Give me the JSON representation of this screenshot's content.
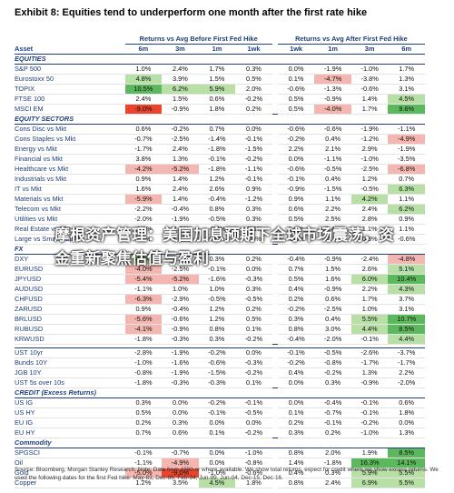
{
  "header": {
    "title": "Exhibit 8: Equities tend to underperform one month after the first rate hike"
  },
  "table": {
    "asset_header": "Asset",
    "group_headers": [
      "Returns vs Avg Before First Fed Hike",
      "Returns vs Avg After First Fed Hike"
    ],
    "columns": [
      "6m",
      "3m",
      "1m",
      "1wk",
      "1wk",
      "1m",
      "3m",
      "6m"
    ],
    "sections": [
      {
        "title": "EQUITIES",
        "rows": [
          {
            "asset": "S&P 500",
            "values": [
              "1.0%",
              "2.4%",
              "1.7%",
              "0.3%",
              "0.0%",
              "-1.9%",
              "-1.0%",
              "1.7%"
            ]
          },
          {
            "asset": "Eurostoxx 50",
            "values": [
              "4.8%",
              "3.9%",
              "1.5%",
              "0.5%",
              "0.1%",
              "-4.7%",
              "-3.8%",
              "1.3%"
            ]
          },
          {
            "asset": "TOPIX",
            "values": [
              "10.5%",
              "6.2%",
              "5.9%",
              "2.0%",
              "-0.6%",
              "-1.3%",
              "-0.6%",
              "3.1%"
            ]
          },
          {
            "asset": "FTSE 100",
            "values": [
              "2.4%",
              "1.5%",
              "0.6%",
              "-0.2%",
              "0.5%",
              "-0.9%",
              "1.4%",
              "4.5%"
            ]
          },
          {
            "asset": "MSCI EM",
            "values": [
              "-9.0%",
              "-0.9%",
              "1.8%",
              "0.2%",
              "0.5%",
              "-4.0%",
              "1.7%",
              "9.6%"
            ]
          }
        ]
      },
      {
        "title": "EQUITY SECTORS",
        "rows": [
          {
            "asset": "Cons Disc vs Mkt",
            "values": [
              "0.6%",
              "-0.2%",
              "0.7%",
              "0.0%",
              "-0.6%",
              "-0.6%",
              "-1.9%",
              "-1.1%"
            ]
          },
          {
            "asset": "Cons Staples vs Mkt",
            "values": [
              "-0.7%",
              "-2.5%",
              "-1.4%",
              "-0.1%",
              "-0.2%",
              "0.4%",
              "-1.2%",
              "-4.9%"
            ]
          },
          {
            "asset": "Energy vs Mkt",
            "values": [
              "-1.7%",
              "2.4%",
              "-1.8%",
              "-1.5%",
              "2.2%",
              "2.1%",
              "2.9%",
              "-1.9%"
            ]
          },
          {
            "asset": "Financial vs Mkt",
            "values": [
              "3.8%",
              "1.3%",
              "-0.1%",
              "-0.2%",
              "0.0%",
              "-1.1%",
              "-1.0%",
              "-3.5%"
            ]
          },
          {
            "asset": "Healthcare vs Mkt",
            "values": [
              "-4.2%",
              "-5.2%",
              "-1.8%",
              "-1.1%",
              "-0.6%",
              "-0.5%",
              "-2.5%",
              "-6.8%"
            ]
          },
          {
            "asset": "Industrials vs Mkt",
            "values": [
              "0.9%",
              "1.4%",
              "1.2%",
              "-0.1%",
              "-0.1%",
              "0.4%",
              "1.2%",
              "0.7%"
            ]
          },
          {
            "asset": "IT vs Mkt",
            "values": [
              "1.6%",
              "2.4%",
              "2.6%",
              "0.9%",
              "-0.9%",
              "-1.5%",
              "-0.5%",
              "6.3%"
            ]
          },
          {
            "asset": "Materials vs Mkt",
            "values": [
              "-5.9%",
              "1.4%",
              "-0.4%",
              "-1.2%",
              "0.9%",
              "1.1%",
              "4.2%",
              "1.1%"
            ]
          },
          {
            "asset": "Telecom vs Mkt",
            "values": [
              "-2.2%",
              "-0.4%",
              "0.8%",
              "0.3%",
              "0.6%",
              "2.2%",
              "2.4%",
              "6.2%"
            ]
          },
          {
            "asset": "Utilities vs Mkt",
            "values": [
              "-2.0%",
              "-1.9%",
              "-0.5%",
              "0.3%",
              "0.5%",
              "2.5%",
              "2.8%",
              "0.9%"
            ]
          },
          {
            "asset": "Real Estate vs Mkt",
            "values": [
              "-1.1%",
              "-1.0%",
              "-0.4%",
              "-0.6%",
              "1.2%",
              "1.4%",
              "1.1%",
              "1.1%"
            ]
          },
          {
            "asset": "Large vs Small Cap",
            "values": [
              "1.7%",
              "1.9%",
              "0.9%",
              "0.5%",
              "-0.3%",
              "-0.1%",
              "0.3%",
              "-0.6%"
            ]
          }
        ]
      },
      {
        "title": "FX",
        "rows": [
          {
            "asset": "DXY",
            "values": [
              "4.7%",
              "2.9%",
              "0.3%",
              "0.2%",
              "-0.4%",
              "-0.9%",
              "-2.4%",
              "-4.8%"
            ]
          },
          {
            "asset": "EURUSD",
            "values": [
              "-4.0%",
              "-2.5%",
              "-0.1%",
              "0.0%",
              "0.7%",
              "1.5%",
              "2.6%",
              "5.1%"
            ]
          },
          {
            "asset": "JPYUSD",
            "values": [
              "-5.4%",
              "-5.2%",
              "-1.6%",
              "-0.3%",
              "0.5%",
              "1.6%",
              "6.0%",
              "10.4%"
            ]
          },
          {
            "asset": "AUDUSD",
            "values": [
              "-1.1%",
              "1.0%",
              "1.0%",
              "0.3%",
              "0.4%",
              "-0.9%",
              "2.2%",
              "4.3%"
            ]
          },
          {
            "asset": "CHFUSD",
            "values": [
              "-6.3%",
              "-2.9%",
              "-0.5%",
              "-0.5%",
              "0.2%",
              "0.6%",
              "1.7%",
              "3.7%"
            ]
          },
          {
            "asset": "ZARUSD",
            "values": [
              "0.9%",
              "-0.4%",
              "1.2%",
              "0.2%",
              "-0.2%",
              "-2.5%",
              "1.0%",
              "3.1%"
            ]
          },
          {
            "asset": "BRLUSD",
            "values": [
              "-5.6%",
              "-0.6%",
              "1.2%",
              "0.5%",
              "0.3%",
              "0.4%",
              "5.5%",
              "10.7%"
            ]
          },
          {
            "asset": "RUBUSD",
            "values": [
              "-4.1%",
              "-0.9%",
              "0.8%",
              "0.1%",
              "0.8%",
              "3.0%",
              "4.4%",
              "8.5%"
            ]
          },
          {
            "asset": "KRWUSD",
            "values": [
              "-1.8%",
              "-0.3%",
              "0.3%",
              "-0.2%",
              "-0.4%",
              "-2.0%",
              "-0.1%",
              "4.4%"
            ]
          }
        ]
      },
      {
        "rows": [
          {
            "asset": "UST 10yr",
            "values": [
              "-2.8%",
              "-1.9%",
              "-0.2%",
              "0.0%",
              "-0.1%",
              "-0.5%",
              "-2.6%",
              "-3.7%"
            ]
          },
          {
            "asset": "Bunds 10Y",
            "values": [
              "-1.0%",
              "-1.6%",
              "-0.6%",
              "-0.3%",
              "-0.2%",
              "-0.8%",
              "-1.7%",
              "-1.7%"
            ]
          },
          {
            "asset": "JGB 10Y",
            "values": [
              "-0.8%",
              "-1.9%",
              "-1.5%",
              "-0.2%",
              "0.4%",
              "-0.2%",
              "1.3%",
              "2.2%"
            ]
          },
          {
            "asset": "UST 5s over 10s",
            "values": [
              "-1.8%",
              "-0.3%",
              "-0.3%",
              "0.1%",
              "0.0%",
              "0.3%",
              "-0.9%",
              "-2.0%"
            ]
          }
        ]
      },
      {
        "title": "CREDIT (Excess Returns)",
        "rows": [
          {
            "asset": "US IG",
            "values": [
              "0.3%",
              "0.0%",
              "-0.2%",
              "-0.1%",
              "0.0%",
              "-0.4%",
              "-0.1%",
              "0.6%"
            ]
          },
          {
            "asset": "US HY",
            "values": [
              "0.5%",
              "0.0%",
              "-0.1%",
              "-0.5%",
              "0.1%",
              "-0.7%",
              "-0.1%",
              "1.8%"
            ]
          },
          {
            "asset": "EU IG",
            "values": [
              "0.2%",
              "0.3%",
              "0.0%",
              "0.0%",
              "0.2%",
              "-0.1%",
              "-0.2%",
              "0.0%"
            ]
          },
          {
            "asset": "EU HY",
            "values": [
              "0.7%",
              "0.6%",
              "0.1%",
              "-0.2%",
              "0.3%",
              "0.2%",
              "-1.0%",
              "1.3%"
            ]
          }
        ]
      },
      {
        "title": "Commodity",
        "rows": [
          {
            "asset": "SPGSCI",
            "values": [
              "-0.1%",
              "-0.7%",
              "0.0%",
              "-1.0%",
              "0.8%",
              "2.0%",
              "1.9%",
              "8.5%"
            ]
          },
          {
            "asset": "Oil",
            "values": [
              "-1.1%",
              "-4.9%",
              "0.0%",
              "-0.8%",
              "1.4%",
              "-1.8%",
              "16.3%",
              "14.1%"
            ]
          },
          {
            "asset": "Gold",
            "values": [
              "-5.0%",
              "-9.0%",
              "-1.0%",
              "-0.6%",
              "0.4%",
              "0.3%",
              "5.9%",
              "5.5%"
            ]
          },
          {
            "asset": "Copper",
            "values": [
              "1.2%",
              "3.5%",
              "4.5%",
              "1.8%",
              "0.8%",
              "2.4%",
              "6.9%",
              "5.5%"
            ]
          }
        ]
      }
    ]
  },
  "footer": "Source: Bloomberg, Morgan Stanley Research; Note: Data from 1980 or where available. We show total returns, expect for credit where we show excess returns. We used the following dates for the first Fed hike: May-83, Dec-86, Feb-94, Jun-99, Jun-04, Dec-15, Dec-16.",
  "watermark": "摩根资产管理：美国加息预期下全球市场震荡，资金重新聚焦估值与盈利"
}
